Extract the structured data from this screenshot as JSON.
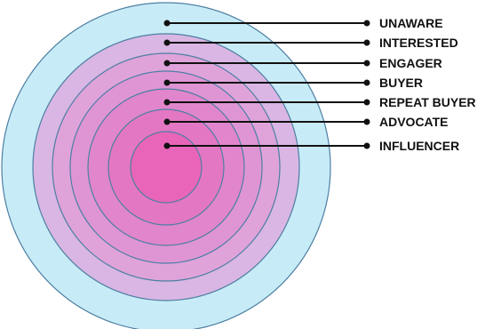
{
  "diagram": {
    "layers": [
      {
        "label": "UNAWARE"
      },
      {
        "label": "INTERESTED"
      },
      {
        "label": "ENGAGER"
      },
      {
        "label": "BUYER"
      },
      {
        "label": "REPEAT BUYER"
      },
      {
        "label": "ADVOCATE"
      },
      {
        "label": "INFLUENCER"
      }
    ],
    "colors": {
      "outer_ring": "#c8ecf7",
      "inner_core": "#e965b9",
      "mid_ring": "#d9b6e3",
      "ring_stroke": "#4d7fa3",
      "leader": "#111111"
    }
  }
}
